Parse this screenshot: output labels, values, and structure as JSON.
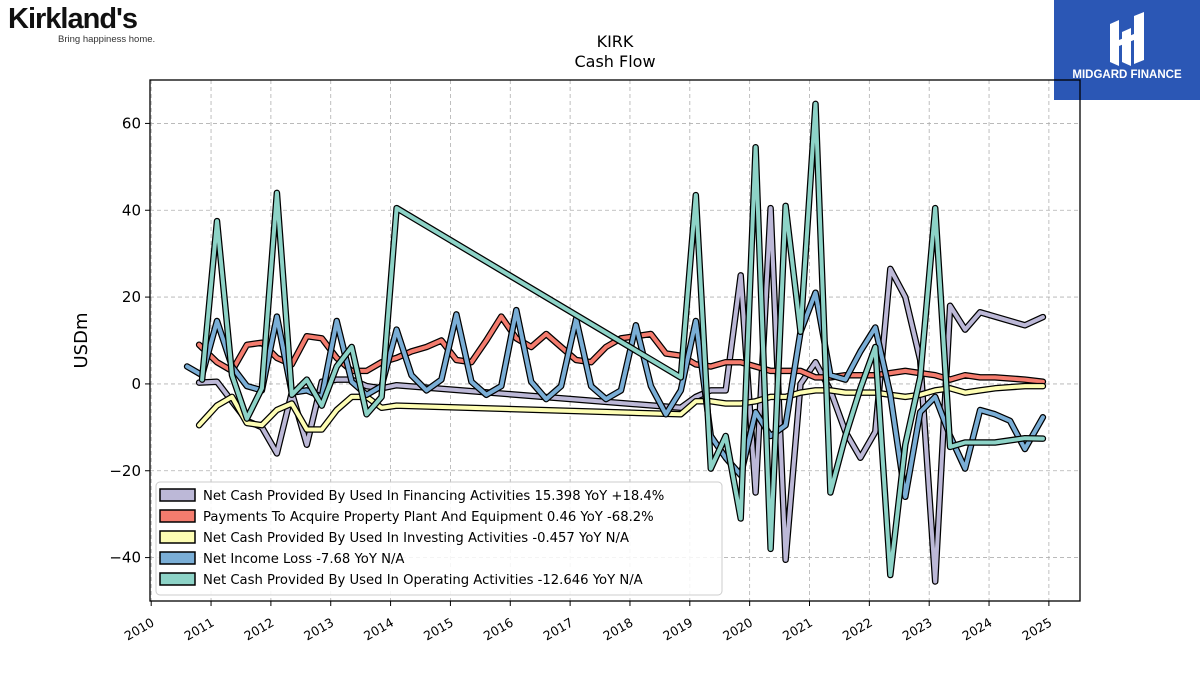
{
  "brand": {
    "left_logo": "Kirkland's",
    "left_tagline": "Bring happiness home.",
    "right_logo": "MIDGARD FINANCE"
  },
  "chart_data": {
    "type": "line",
    "title": "KIRK",
    "subtitle": "Cash Flow",
    "xlabel": "",
    "ylabel": "USDm",
    "xlim": [
      2009.98,
      2025.52
    ],
    "ylim": [
      -50,
      70
    ],
    "x_ticks": [
      "2010",
      "2011",
      "2012",
      "2013",
      "2014",
      "2015",
      "2016",
      "2017",
      "2018",
      "2019",
      "2020",
      "2021",
      "2022",
      "2023",
      "2024",
      "2025"
    ],
    "y_ticks": [
      -40,
      -20,
      0,
      20,
      40,
      60
    ],
    "grid": true,
    "legend_position": "lower-left",
    "series": [
      {
        "name": "Net Cash Provided By Used In Financing Activities",
        "legend": "Net Cash Provided By Used In Financing Activities  15.398 YoY +18.4%",
        "color": "#bcb8d7",
        "points": [
          [
            2010.8,
            0.3
          ],
          [
            2011.1,
            0.5
          ],
          [
            2011.6,
            -8.5
          ],
          [
            2011.85,
            -10
          ],
          [
            2012.1,
            -16
          ],
          [
            2012.35,
            -2
          ],
          [
            2012.6,
            -14
          ],
          [
            2012.85,
            0.5
          ],
          [
            2013.1,
            1
          ],
          [
            2013.35,
            1
          ],
          [
            2013.6,
            -0.5
          ],
          [
            2013.85,
            -1
          ],
          [
            2014.1,
            -0.3
          ],
          [
            2018.85,
            -5.5
          ],
          [
            2019.1,
            -3
          ],
          [
            2019.35,
            -1.5
          ],
          [
            2019.6,
            -1.5
          ],
          [
            2019.85,
            25
          ],
          [
            2020.1,
            -25
          ],
          [
            2020.35,
            40.5
          ],
          [
            2020.6,
            -40.5
          ],
          [
            2020.85,
            0
          ],
          [
            2021.1,
            5
          ],
          [
            2021.35,
            -1.5
          ],
          [
            2021.6,
            -11
          ],
          [
            2021.85,
            -17
          ],
          [
            2022.1,
            -11
          ],
          [
            2022.35,
            26.5
          ],
          [
            2022.6,
            20
          ],
          [
            2022.85,
            5.5
          ],
          [
            2023.1,
            -45.5
          ],
          [
            2023.35,
            18
          ],
          [
            2023.6,
            12.5
          ],
          [
            2023.85,
            16.5
          ],
          [
            2024.1,
            15.5
          ],
          [
            2024.6,
            13.5
          ],
          [
            2024.9,
            15.4
          ]
        ]
      },
      {
        "name": "Payments To Acquire Property Plant And Equipment",
        "legend": "Payments To Acquire Property Plant And Equipment  0.46 YoY -68.2%",
        "color": "#f47c6e",
        "points": [
          [
            2010.8,
            9
          ],
          [
            2011.1,
            5
          ],
          [
            2011.35,
            3
          ],
          [
            2011.6,
            9
          ],
          [
            2011.85,
            9.5
          ],
          [
            2012.1,
            6
          ],
          [
            2012.35,
            4.5
          ],
          [
            2012.6,
            11
          ],
          [
            2012.85,
            10.5
          ],
          [
            2013.1,
            6
          ],
          [
            2013.35,
            3
          ],
          [
            2013.6,
            3
          ],
          [
            2013.85,
            5
          ],
          [
            2014.1,
            6
          ],
          [
            2014.35,
            7.5
          ],
          [
            2014.6,
            8.5
          ],
          [
            2014.85,
            10
          ],
          [
            2015.1,
            5.5
          ],
          [
            2015.35,
            5
          ],
          [
            2015.6,
            10
          ],
          [
            2015.85,
            15.5
          ],
          [
            2016.1,
            10.5
          ],
          [
            2016.35,
            8.5
          ],
          [
            2016.6,
            11.5
          ],
          [
            2016.85,
            8.5
          ],
          [
            2017.1,
            5.5
          ],
          [
            2017.35,
            5
          ],
          [
            2017.6,
            8.5
          ],
          [
            2017.85,
            10.5
          ],
          [
            2018.1,
            11
          ],
          [
            2018.35,
            11.5
          ],
          [
            2018.6,
            7
          ],
          [
            2018.85,
            6.5
          ],
          [
            2019.1,
            4.5
          ],
          [
            2019.35,
            4
          ],
          [
            2019.6,
            5
          ],
          [
            2019.85,
            5
          ],
          [
            2020.1,
            4
          ],
          [
            2020.35,
            3
          ],
          [
            2020.6,
            3
          ],
          [
            2020.85,
            3
          ],
          [
            2021.1,
            1.5
          ],
          [
            2021.35,
            1.5
          ],
          [
            2021.6,
            2
          ],
          [
            2021.85,
            2
          ],
          [
            2022.1,
            2
          ],
          [
            2022.35,
            2.5
          ],
          [
            2022.6,
            3
          ],
          [
            2022.85,
            2.5
          ],
          [
            2023.1,
            2
          ],
          [
            2023.35,
            1
          ],
          [
            2023.6,
            2
          ],
          [
            2023.85,
            1.5
          ],
          [
            2024.1,
            1.5
          ],
          [
            2024.6,
            1
          ],
          [
            2024.9,
            0.5
          ]
        ]
      },
      {
        "name": "Net Cash Provided By Used In Investing Activities",
        "legend": "Net Cash Provided By Used In Investing Activities  -0.457 YoY N/A",
        "color": "#fdfdb3",
        "points": [
          [
            2010.8,
            -9.5
          ],
          [
            2011.1,
            -5
          ],
          [
            2011.35,
            -3
          ],
          [
            2011.6,
            -9
          ],
          [
            2011.85,
            -9.5
          ],
          [
            2012.1,
            -6
          ],
          [
            2012.35,
            -4.5
          ],
          [
            2012.6,
            -10.5
          ],
          [
            2012.85,
            -10.5
          ],
          [
            2013.1,
            -6
          ],
          [
            2013.35,
            -3
          ],
          [
            2013.6,
            -3
          ],
          [
            2013.85,
            -5.5
          ],
          [
            2014.1,
            -5
          ],
          [
            2018.85,
            -7
          ],
          [
            2019.1,
            -4
          ],
          [
            2019.35,
            -4
          ],
          [
            2019.6,
            -4.5
          ],
          [
            2019.85,
            -4.5
          ],
          [
            2020.1,
            -4
          ],
          [
            2020.35,
            -3
          ],
          [
            2020.6,
            -3
          ],
          [
            2020.85,
            -2
          ],
          [
            2021.1,
            -1.5
          ],
          [
            2021.35,
            -1.5
          ],
          [
            2021.6,
            -2
          ],
          [
            2021.85,
            -2
          ],
          [
            2022.1,
            -2
          ],
          [
            2022.35,
            -2.5
          ],
          [
            2022.6,
            -3
          ],
          [
            2022.85,
            -2.5
          ],
          [
            2023.1,
            -1.5
          ],
          [
            2023.35,
            -1
          ],
          [
            2023.6,
            -2
          ],
          [
            2023.85,
            -1.5
          ],
          [
            2024.1,
            -1
          ],
          [
            2024.6,
            -0.5
          ],
          [
            2024.9,
            -0.5
          ]
        ]
      },
      {
        "name": "Net Income Loss",
        "legend": "Net Income Loss  -7.68 YoY N/A",
        "color": "#7aaed6",
        "points": [
          [
            2010.6,
            4
          ],
          [
            2010.85,
            2
          ],
          [
            2011.1,
            14.5
          ],
          [
            2011.35,
            4
          ],
          [
            2011.6,
            -0.5
          ],
          [
            2011.85,
            -1.5
          ],
          [
            2012.1,
            15.5
          ],
          [
            2012.35,
            -2
          ],
          [
            2012.6,
            -1.5
          ],
          [
            2012.85,
            -3
          ],
          [
            2013.1,
            14.5
          ],
          [
            2013.35,
            0.5
          ],
          [
            2013.6,
            -2.5
          ],
          [
            2013.85,
            -0.5
          ],
          [
            2014.1,
            12.5
          ],
          [
            2014.35,
            2
          ],
          [
            2014.6,
            -1.5
          ],
          [
            2014.85,
            1
          ],
          [
            2015.1,
            16
          ],
          [
            2015.35,
            0.5
          ],
          [
            2015.6,
            -2.5
          ],
          [
            2015.85,
            -0.5
          ],
          [
            2016.1,
            17
          ],
          [
            2016.35,
            0.5
          ],
          [
            2016.6,
            -3.5
          ],
          [
            2016.85,
            -0.5
          ],
          [
            2017.1,
            15
          ],
          [
            2017.35,
            -0.5
          ],
          [
            2017.6,
            -3.5
          ],
          [
            2017.85,
            -1.5
          ],
          [
            2018.1,
            13.5
          ],
          [
            2018.35,
            -0.5
          ],
          [
            2018.6,
            -7
          ],
          [
            2018.85,
            -1.5
          ],
          [
            2019.1,
            14.5
          ],
          [
            2019.35,
            -12
          ],
          [
            2019.6,
            -17
          ],
          [
            2019.85,
            -21
          ],
          [
            2020.1,
            -6.5
          ],
          [
            2020.35,
            -12
          ],
          [
            2020.6,
            -9.5
          ],
          [
            2020.85,
            12
          ],
          [
            2021.1,
            21
          ],
          [
            2021.35,
            2
          ],
          [
            2021.6,
            1
          ],
          [
            2021.85,
            7.5
          ],
          [
            2022.1,
            13
          ],
          [
            2022.35,
            -2.5
          ],
          [
            2022.6,
            -26
          ],
          [
            2022.85,
            -6.5
          ],
          [
            2023.1,
            -3
          ],
          [
            2023.35,
            -12
          ],
          [
            2023.6,
            -19.5
          ],
          [
            2023.85,
            -6
          ],
          [
            2024.1,
            -7
          ],
          [
            2024.35,
            -8.5
          ],
          [
            2024.6,
            -15
          ],
          [
            2024.9,
            -7.7
          ]
        ]
      },
      {
        "name": "Net Cash Provided By Used In Operating Activities",
        "legend": "Net Cash Provided By Used In Operating Activities  -12.646 YoY N/A",
        "color": "#8dd3c7",
        "points": [
          [
            2010.85,
            1
          ],
          [
            2011.1,
            37.5
          ],
          [
            2011.35,
            2
          ],
          [
            2011.6,
            -8
          ],
          [
            2011.85,
            -1
          ],
          [
            2012.1,
            44
          ],
          [
            2012.35,
            -2.5
          ],
          [
            2012.6,
            1
          ],
          [
            2012.85,
            -5
          ],
          [
            2013.1,
            4
          ],
          [
            2013.35,
            8.5
          ],
          [
            2013.6,
            -7
          ],
          [
            2013.85,
            -3
          ],
          [
            2014.1,
            40.5
          ],
          [
            2018.85,
            1.5
          ],
          [
            2019.1,
            43.5
          ],
          [
            2019.35,
            -19.5
          ],
          [
            2019.6,
            -12
          ],
          [
            2019.85,
            -31
          ],
          [
            2020.1,
            54.5
          ],
          [
            2020.35,
            -38
          ],
          [
            2020.6,
            41
          ],
          [
            2020.85,
            12
          ],
          [
            2021.1,
            64.5
          ],
          [
            2021.35,
            -25
          ],
          [
            2021.6,
            -12
          ],
          [
            2021.85,
            -1
          ],
          [
            2022.1,
            8.5
          ],
          [
            2022.35,
            -44
          ],
          [
            2022.6,
            -14
          ],
          [
            2022.85,
            1.5
          ],
          [
            2023.1,
            40.5
          ],
          [
            2023.35,
            -14.5
          ],
          [
            2023.6,
            -13.5
          ],
          [
            2023.85,
            -13.5
          ],
          [
            2024.1,
            -13.5
          ],
          [
            2024.6,
            -12.5
          ],
          [
            2024.9,
            -12.6
          ]
        ]
      }
    ]
  }
}
